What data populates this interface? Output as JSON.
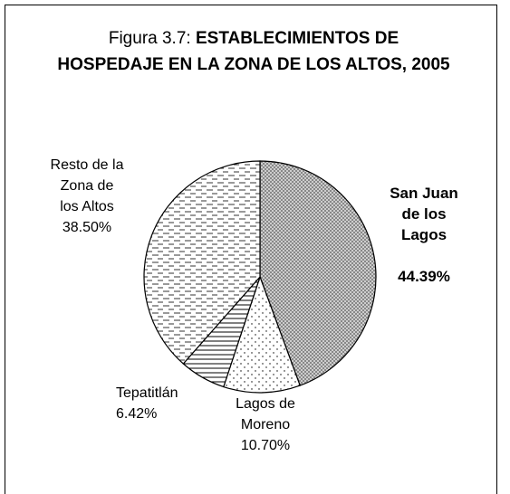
{
  "chart_data": {
    "type": "pie",
    "title_prefix": "Figura 3.7:",
    "title": "ESTABLECIMIENTOS DE HOSPEDAJE EN LA ZONA DE LOS ALTOS, 2005",
    "categories": [
      "San Juan\nde los\nLagos",
      "Lagos de\nMoreno",
      "Tepatitlán",
      "Resto de la\nZona de\nlos Altos"
    ],
    "values": [
      44.39,
      10.7,
      6.42,
      38.5
    ],
    "value_labels": [
      "44.39%",
      "10.70%",
      "6.42%",
      "38.50%"
    ]
  }
}
